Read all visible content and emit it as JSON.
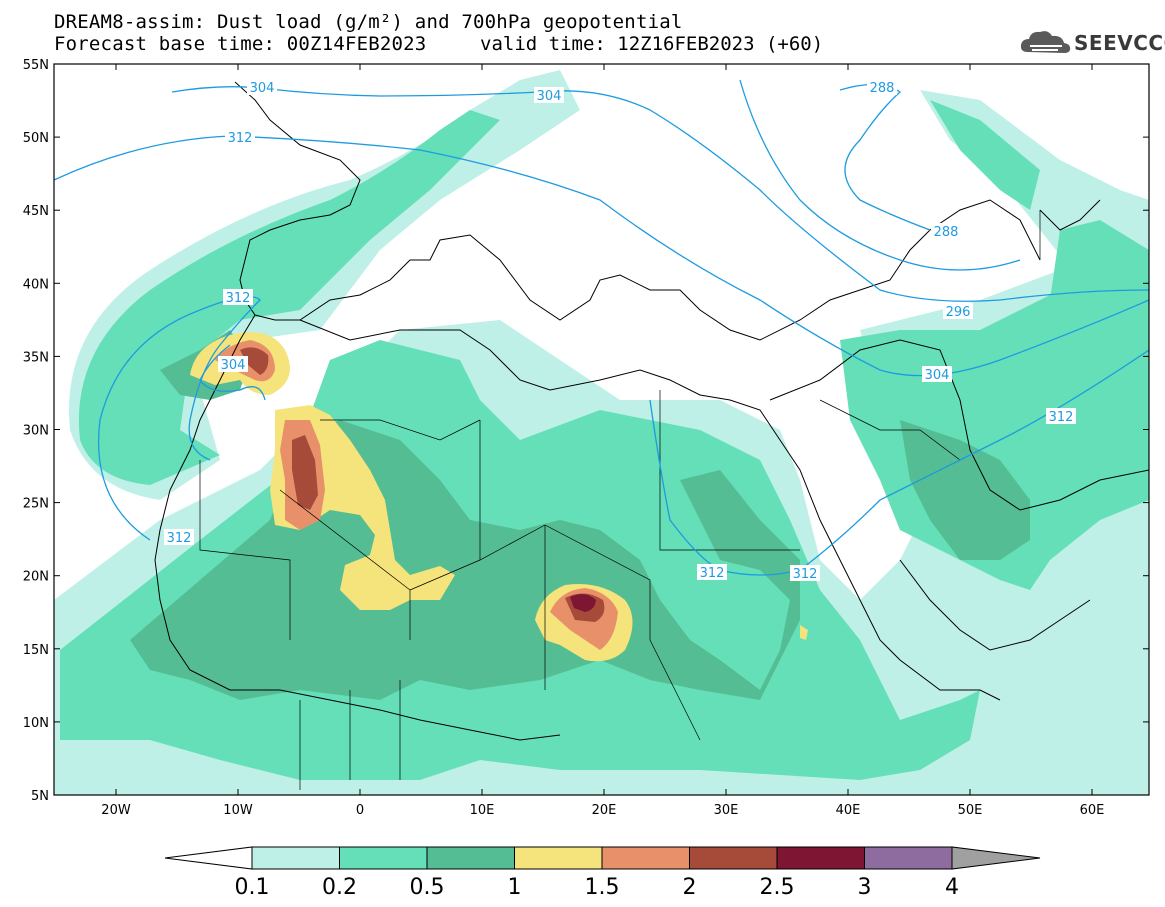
{
  "header": {
    "title_line1": "DREAM8-assim: Dust load (g/m²) and 700hPa geopotential",
    "title_line2_left": "Forecast base time: 00Z14FEB2023",
    "title_line2_right": "valid time: 12Z16FEB2023 (+60)"
  },
  "logo": {
    "text": "SEEVCCC",
    "icon": "cloud-icon"
  },
  "map": {
    "lat_labels": [
      "55N",
      "50N",
      "45N",
      "40N",
      "35N",
      "30N",
      "25N",
      "20N",
      "15N",
      "10N",
      "5N"
    ],
    "lon_labels": [
      "20W",
      "10W",
      "0",
      "10E",
      "20E",
      "30E",
      "40E",
      "50E",
      "60E"
    ],
    "contour_labels": [
      {
        "text": "304"
      },
      {
        "text": "304"
      },
      {
        "text": "288"
      },
      {
        "text": "312"
      },
      {
        "text": "288"
      },
      {
        "text": "312"
      },
      {
        "text": "296"
      },
      {
        "text": "304"
      },
      {
        "text": "304"
      },
      {
        "text": "312"
      },
      {
        "text": "312"
      },
      {
        "text": "312"
      },
      {
        "text": "312"
      }
    ],
    "contour_color": "#1e9be0",
    "land_border_color": "#000000"
  },
  "colorbar": {
    "labels": [
      "0.1",
      "0.2",
      "0.5",
      "1",
      "1.5",
      "2",
      "2.5",
      "3",
      "4"
    ],
    "colors": [
      "#bff0e8",
      "#64dfb8",
      "#55bd93",
      "#f5e37b",
      "#e8906a",
      "#a64a3a",
      "#7d1533",
      "#8e6c9f",
      "#a0a0a0"
    ],
    "under_color": "#ffffff"
  }
}
